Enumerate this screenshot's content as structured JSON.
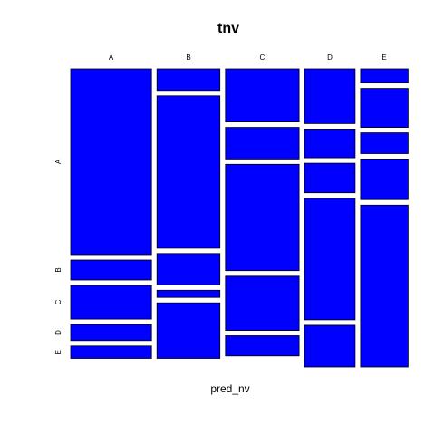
{
  "chart_data": {
    "type": "mosaic",
    "title": "tnv",
    "xlabel": "pred_nv",
    "ylabel": "",
    "x_categories": [
      "A",
      "B",
      "C",
      "D",
      "E"
    ],
    "y_categories": [
      "A",
      "B",
      "C",
      "D",
      "E"
    ],
    "x_proportions": [
      0.272,
      0.212,
      0.248,
      0.17,
      0.16
    ],
    "conditional_proportions": {
      "A": [
        0.672,
        0.072,
        0.122,
        0.058,
        0.045
      ],
      "B": [
        0.078,
        0.551,
        0.113,
        0.026,
        0.201
      ],
      "C": [
        0.192,
        0.114,
        0.385,
        0.196,
        0.073
      ],
      "D": [
        0.198,
        0.104,
        0.107,
        0.44,
        0.151
      ],
      "E": [
        0.051,
        0.141,
        0.075,
        0.147,
        0.586
      ]
    },
    "tile_color": "#0000ff",
    "grid": false,
    "legend": "none"
  }
}
